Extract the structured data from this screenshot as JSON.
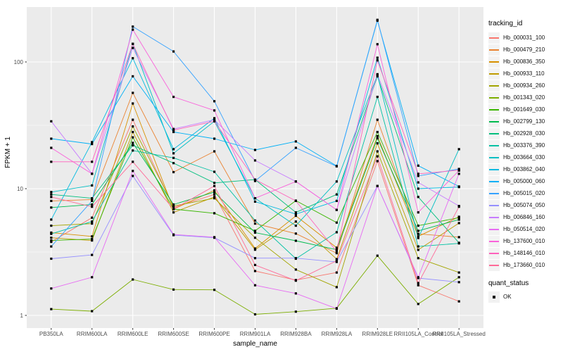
{
  "figure": {
    "background": "#ffffff",
    "panel_background": "#ebebeb",
    "grid_color": "#ffffff",
    "tick_color": "#333333",
    "tick_label_color": "#4d4d4d",
    "marker_color": "#000000"
  },
  "axes": {
    "x_label": "sample_name",
    "y_label": "FPKM + 1",
    "y_tick_labels": [
      "1",
      "10",
      "100"
    ]
  },
  "legend": {
    "tracking_title": "tracking_id",
    "quant_title": "quant_status",
    "quant_items": [
      {
        "label": "OK",
        "marker": "black-square"
      }
    ]
  },
  "chart_data": {
    "type": "line",
    "title": "",
    "xlabel": "sample_name",
    "ylabel": "FPKM + 1",
    "y_scale": "log10",
    "y_ticks": [
      1,
      10,
      100
    ],
    "y_minor_ticks": [
      3.162,
      31.62
    ],
    "ylim": [
      0.8,
      280
    ],
    "grid": true,
    "legend_position": "right",
    "marker": "black-square",
    "categories": [
      "PB350LA",
      "RRIM600LA",
      "RRIM600LE",
      "RRIM600SE",
      "RRIM600PE",
      "RRIM901LA",
      "RRIM928BA",
      "RRIM928LA",
      "RRIM928LE",
      "RRII105LA_Control",
      "RRII105LA_Stressed"
    ],
    "series": [
      {
        "name": "Hb_000031_100",
        "color": "#F8766D",
        "values": [
          3.8,
          5.9,
          35,
          7.1,
          9.0,
          2.24,
          1.9,
          2.18,
          16.5,
          1.73,
          1.29
        ]
      },
      {
        "name": "Hb_000479_210",
        "color": "#EA8331",
        "values": [
          8.0,
          8.2,
          57,
          13.5,
          19.7,
          5.3,
          4.42,
          3.1,
          35,
          4.4,
          4.14
        ]
      },
      {
        "name": "Hb_000836_350",
        "color": "#D89000",
        "values": [
          4.5,
          4.2,
          47,
          6.9,
          9.7,
          3.37,
          6.1,
          3.42,
          26,
          4.2,
          6.0
        ]
      },
      {
        "name": "Hb_000933_110",
        "color": "#C09B00",
        "values": [
          4.1,
          3.9,
          28,
          6.5,
          8.6,
          3.3,
          5.5,
          2.78,
          22.8,
          3.29,
          5.35
        ]
      },
      {
        "name": "Hb_000934_260",
        "color": "#A3A500",
        "values": [
          5.1,
          5.3,
          31,
          7.3,
          8.4,
          4.1,
          2.3,
          1.67,
          19.7,
          2.83,
          2.18
        ]
      },
      {
        "name": "Hb_001343_020",
        "color": "#7CAE00",
        "values": [
          1.12,
          1.08,
          1.92,
          1.6,
          1.59,
          1.02,
          1.07,
          1.14,
          2.96,
          1.23,
          2.0
        ]
      },
      {
        "name": "Hb_001649_030",
        "color": "#39B600",
        "values": [
          3.9,
          4.0,
          25.4,
          6.9,
          6.4,
          4.65,
          8.05,
          5.4,
          28,
          5.1,
          5.9
        ]
      },
      {
        "name": "Hb_002799_130",
        "color": "#00BB4E",
        "values": [
          7.1,
          7.5,
          23,
          7.5,
          9.4,
          4.5,
          3.88,
          3.3,
          25,
          4.65,
          5.7
        ]
      },
      {
        "name": "Hb_002928_030",
        "color": "#00BF7D",
        "values": [
          9.0,
          8.4,
          22,
          15.9,
          11.1,
          11.8,
          6.5,
          9.0,
          77,
          8.6,
          3.74
        ]
      },
      {
        "name": "Hb_003376_390",
        "color": "#00C1A3",
        "values": [
          4.4,
          5.5,
          20,
          17.5,
          13.6,
          5.6,
          2.8,
          4.53,
          53,
          3.5,
          3.7
        ]
      },
      {
        "name": "Hb_003664_030",
        "color": "#00BFC4",
        "values": [
          9.4,
          10.6,
          139,
          19,
          34,
          8.4,
          5.1,
          11.4,
          79,
          4.08,
          20.5
        ]
      },
      {
        "name": "Hb_003862_040",
        "color": "#00BAE0",
        "values": [
          5.7,
          23.3,
          107,
          20.5,
          36,
          7.9,
          6.3,
          8.0,
          108,
          10.0,
          10.3
        ]
      },
      {
        "name": "Hb_005000_060",
        "color": "#00B0F6",
        "values": [
          24.8,
          22.5,
          77,
          28,
          24.8,
          20.2,
          23.6,
          15.1,
          212,
          15.2,
          10.4
        ]
      },
      {
        "name": "Hb_005015_020",
        "color": "#35A2FF",
        "values": [
          3.5,
          8.0,
          190,
          121,
          49,
          11.5,
          21,
          15.0,
          215,
          12.6,
          14.3
        ]
      },
      {
        "name": "Hb_005074_050",
        "color": "#9590FF",
        "values": [
          2.8,
          3.0,
          12.6,
          4.3,
          4.1,
          2.83,
          2.83,
          2.64,
          10.5,
          1.97,
          1.83
        ]
      },
      {
        "name": "Hb_006846_160",
        "color": "#C77CFF",
        "values": [
          34,
          13.1,
          129,
          29.6,
          35,
          16.7,
          11.4,
          6.8,
          80,
          11.2,
          7.3
        ]
      },
      {
        "name": "Hb_050514_020",
        "color": "#E76BF3",
        "values": [
          1.63,
          2.0,
          13.8,
          4.35,
          4.14,
          1.73,
          1.49,
          1.13,
          10.5,
          2.0,
          13.1
        ]
      },
      {
        "name": "Hb_137600_010",
        "color": "#FA62DB",
        "values": [
          21,
          13.1,
          180,
          53,
          41.4,
          8.4,
          11.4,
          6.8,
          138,
          6.5,
          13.9
        ]
      },
      {
        "name": "Hb_148146_010",
        "color": "#FF62BC",
        "values": [
          16.3,
          16.3,
          139,
          29,
          34,
          11.8,
          8.0,
          3.2,
          103,
          13.1,
          14.0
        ]
      },
      {
        "name": "Hb_173660_010",
        "color": "#FF6A98",
        "values": [
          8.6,
          7.2,
          16.3,
          6.9,
          10.5,
          2.5,
          1.88,
          2.7,
          18,
          1.8,
          7.2
        ]
      }
    ]
  }
}
